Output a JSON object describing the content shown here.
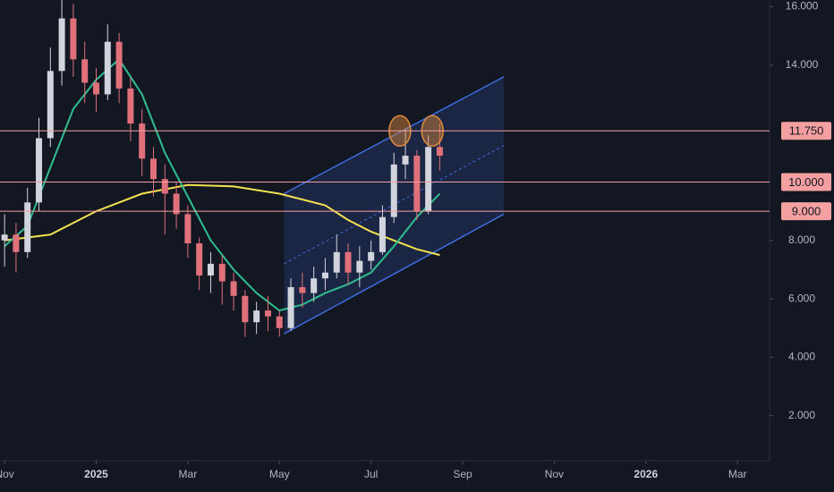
{
  "chart_data": {
    "type": "candlestick",
    "x": [
      0,
      0.25,
      0.5,
      0.75,
      1,
      1.25,
      1.5,
      1.75,
      2,
      2.25,
      2.5,
      2.75,
      3,
      3.25,
      3.5,
      3.75,
      4,
      4.25,
      4.5,
      4.75,
      5,
      5.25,
      5.5,
      5.75,
      6,
      6.25,
      6.5,
      6.75,
      7,
      7.25,
      7.5,
      7.75,
      8,
      8.25,
      8.5,
      8.75,
      9,
      9.25,
      9.5
    ],
    "open": [
      8.0,
      8.2,
      7.6,
      9.3,
      11.5,
      13.8,
      15.6,
      14.2,
      13.4,
      13.0,
      14.8,
      13.2,
      12.0,
      10.8,
      10.1,
      9.6,
      8.9,
      7.9,
      6.8,
      7.2,
      6.6,
      6.1,
      5.2,
      5.6,
      5.4,
      5.0,
      6.4,
      6.2,
      6.7,
      6.9,
      7.6,
      6.9,
      7.3,
      7.6,
      8.8,
      10.6,
      10.9,
      9.0,
      11.2
    ],
    "high": [
      8.9,
      8.6,
      9.8,
      12.2,
      14.6,
      16.4,
      16.1,
      14.8,
      13.9,
      15.4,
      15.1,
      13.6,
      12.5,
      11.2,
      10.6,
      10.0,
      9.2,
      8.1,
      7.6,
      7.5,
      6.9,
      6.3,
      5.9,
      6.1,
      5.6,
      6.7,
      6.9,
      7.1,
      7.4,
      8.2,
      7.9,
      7.8,
      8.0,
      9.2,
      11.0,
      11.8,
      11.1,
      11.6,
      12.0
    ],
    "low": [
      7.1,
      6.9,
      7.4,
      9.0,
      11.2,
      13.3,
      13.6,
      12.7,
      12.4,
      12.8,
      12.7,
      11.4,
      10.2,
      9.5,
      8.2,
      8.4,
      7.4,
      6.3,
      6.2,
      5.8,
      5.6,
      4.7,
      4.8,
      4.9,
      4.7,
      4.9,
      5.7,
      5.9,
      6.3,
      6.7,
      6.5,
      6.4,
      7.0,
      7.5,
      8.6,
      10.1,
      8.7,
      8.9,
      10.4
    ],
    "close": [
      8.2,
      7.6,
      9.3,
      11.5,
      13.8,
      15.6,
      14.2,
      13.4,
      13.0,
      14.8,
      13.2,
      12.0,
      10.8,
      10.1,
      9.6,
      8.9,
      7.9,
      6.8,
      7.2,
      6.6,
      6.1,
      5.2,
      5.6,
      5.4,
      5.0,
      6.4,
      6.2,
      6.7,
      6.9,
      7.6,
      6.9,
      7.3,
      7.6,
      8.8,
      10.6,
      10.9,
      9.0,
      11.2,
      10.9
    ],
    "up_color": "#d1d4dc",
    "down_color": "#e0707a",
    "xlim": [
      -0.1,
      16.7
    ],
    "xticks": [
      {
        "value": 0,
        "label": "Nov"
      },
      {
        "value": 2,
        "label": "2025"
      },
      {
        "value": 4,
        "label": "Mar"
      },
      {
        "value": 6,
        "label": "May"
      },
      {
        "value": 8,
        "label": "Jul"
      },
      {
        "value": 10,
        "label": "Sep"
      },
      {
        "value": 12,
        "label": "Nov"
      },
      {
        "value": 14,
        "label": "2026"
      },
      {
        "value": 16,
        "label": "Mar"
      }
    ],
    "ylim": [
      0.46,
      16.23
    ],
    "yticks": [
      {
        "value": 2,
        "label": "2.000"
      },
      {
        "value": 4,
        "label": "4.000"
      },
      {
        "value": 6,
        "label": "6.000"
      },
      {
        "value": 8,
        "label": "8.000"
      },
      {
        "value": 14,
        "label": "14.000"
      },
      {
        "value": 16,
        "label": "16.000"
      }
    ],
    "lines": [
      {
        "color": "#f5e050",
        "x": [
          0,
          1,
          2,
          3,
          4,
          5,
          6,
          7,
          7.5,
          8,
          8.5,
          9,
          9.5
        ],
        "values": [
          8.0,
          8.2,
          9.0,
          9.6,
          9.9,
          9.85,
          9.6,
          9.2,
          8.7,
          8.3,
          8.0,
          7.7,
          7.5
        ]
      },
      {
        "color": "#2fbf8f",
        "x": [
          0,
          0.5,
          1,
          1.5,
          2,
          2.5,
          3,
          3.5,
          4,
          4.5,
          5,
          5.5,
          6,
          6.5,
          7,
          7.5,
          8,
          8.5,
          9,
          9.5
        ],
        "values": [
          7.8,
          8.5,
          10.5,
          12.5,
          13.5,
          14.2,
          13.0,
          11.0,
          9.5,
          8.0,
          7.0,
          6.2,
          5.6,
          5.8,
          6.2,
          6.5,
          6.9,
          7.8,
          8.8,
          9.6
        ]
      }
    ],
    "levels": [
      {
        "value": 11.75,
        "label": "11.750"
      },
      {
        "value": 10,
        "label": "10.000"
      },
      {
        "value": 9,
        "label": "9.000"
      }
    ],
    "level_color": "#f4a0a0",
    "channel": {
      "color": "#3d6de0",
      "x": [
        6.1,
        10.9
      ],
      "upper": [
        9.6,
        13.6
      ],
      "lower": [
        4.8,
        8.9
      ]
    },
    "highlights": {
      "color": "#e08a3a",
      "x": [
        8.63,
        9.34
      ],
      "values": [
        11.75,
        11.75
      ]
    }
  }
}
